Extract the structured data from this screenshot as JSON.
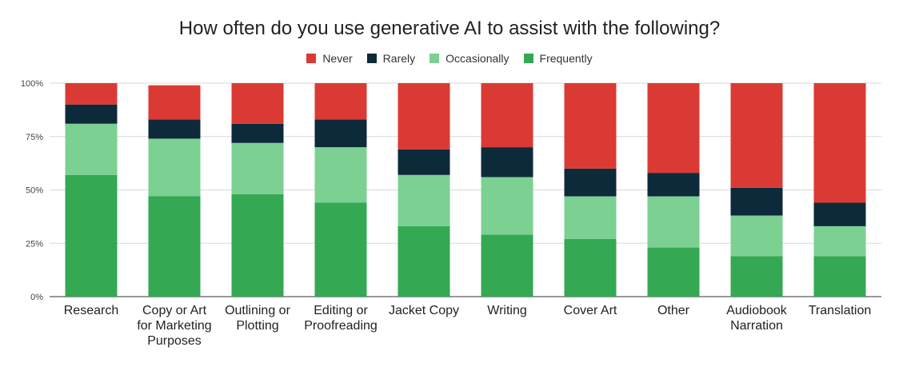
{
  "chart_data": {
    "type": "bar",
    "stacked": true,
    "title": "How often do you use generative AI to assist with the following?",
    "categories": [
      [
        "Research"
      ],
      [
        "Copy or Art",
        "for Marketing",
        "Purposes"
      ],
      [
        "Outlining or",
        "Plotting"
      ],
      [
        "Editing or",
        "Proofreading"
      ],
      [
        "Jacket Copy"
      ],
      [
        "Writing"
      ],
      [
        "Cover Art"
      ],
      [
        "Other"
      ],
      [
        "Audiobook",
        "Narration"
      ],
      [
        "Translation"
      ]
    ],
    "series": [
      {
        "name": "Frequently",
        "color": "#34a853",
        "values": [
          57,
          47,
          48,
          44,
          33,
          29,
          27,
          23,
          19,
          19
        ]
      },
      {
        "name": "Occasionally",
        "color": "#7bd092",
        "values": [
          24,
          27,
          24,
          26,
          24,
          27,
          20,
          24,
          19,
          14
        ]
      },
      {
        "name": "Rarely",
        "color": "#0d2a3a",
        "values": [
          9,
          9,
          9,
          13,
          12,
          14,
          13,
          11,
          13,
          11
        ]
      },
      {
        "name": "Never",
        "color": "#db3a34",
        "values": [
          10,
          16,
          19,
          17,
          31,
          30,
          40,
          42,
          49,
          56
        ]
      }
    ],
    "legend_order": [
      "Never",
      "Rarely",
      "Occasionally",
      "Frequently"
    ],
    "yticks": [
      "0%",
      "25%",
      "50%",
      "75%",
      "100%"
    ],
    "ylim": [
      0,
      100
    ],
    "grid": true,
    "legend_position": "top-center"
  }
}
